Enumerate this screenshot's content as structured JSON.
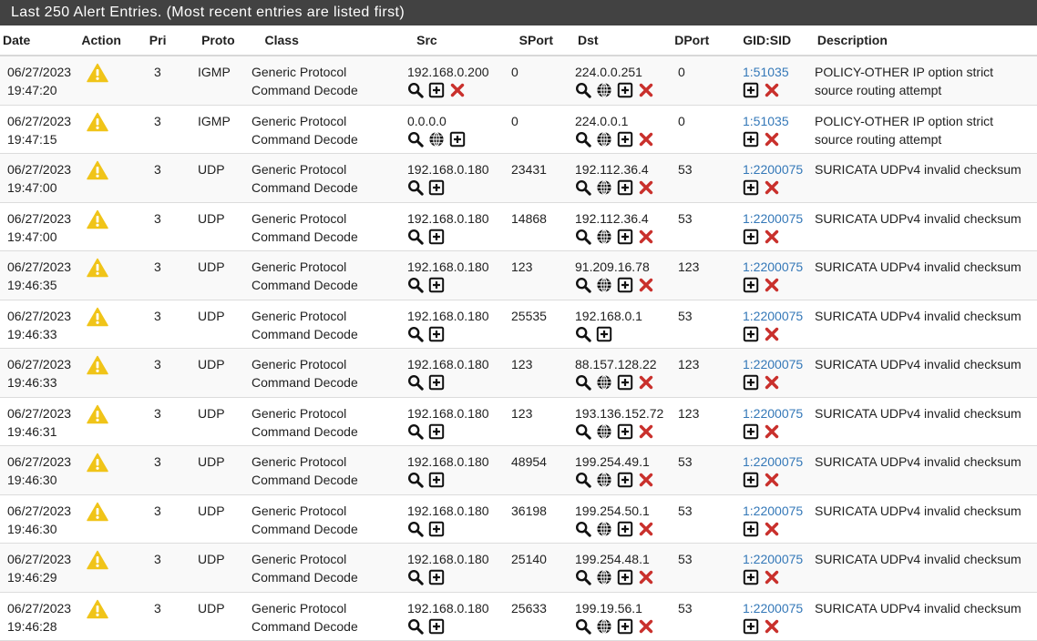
{
  "panel": {
    "title": "Last 250 Alert Entries. (Most recent entries are listed first)"
  },
  "columns": {
    "date": "Date",
    "action": "Action",
    "pri": "Pri",
    "proto": "Proto",
    "class": "Class",
    "src": "Src",
    "sport": "SPort",
    "dst": "Dst",
    "dport": "DPort",
    "gidsid": "GID:SID",
    "description": "Description"
  },
  "icons": {
    "action": "warning-triangle-icon",
    "src_dst": [
      "search-icon",
      "globe-icon",
      "add-icon",
      "remove-icon"
    ],
    "colors": {
      "warning": "#f0c419",
      "remove": "#c9302c",
      "link": "#3478b8",
      "header_bg": "#424242"
    }
  },
  "rows": [
    {
      "date": "06/27/2023",
      "time": "19:47:20",
      "pri": "3",
      "proto": "IGMP",
      "class1": "Generic Protocol",
      "class2": "Command Decode",
      "src": "192.168.0.200",
      "sport": "0",
      "dst": "224.0.0.251",
      "dport": "0",
      "gidsid": "1:51035",
      "desc1": "POLICY-OTHER IP option strict",
      "desc2": "source routing attempt",
      "src_icons": [
        "search",
        "add",
        "remove"
      ],
      "dst_icons": [
        "search",
        "globe",
        "add",
        "remove"
      ]
    },
    {
      "date": "06/27/2023",
      "time": "19:47:15",
      "pri": "3",
      "proto": "IGMP",
      "class1": "Generic Protocol",
      "class2": "Command Decode",
      "src": "0.0.0.0",
      "sport": "0",
      "dst": "224.0.0.1",
      "dport": "0",
      "gidsid": "1:51035",
      "desc1": "POLICY-OTHER IP option strict",
      "desc2": "source routing attempt",
      "src_icons": [
        "search",
        "globe",
        "add"
      ],
      "dst_icons": [
        "search",
        "globe",
        "add",
        "remove"
      ]
    },
    {
      "date": "06/27/2023",
      "time": "19:47:00",
      "pri": "3",
      "proto": "UDP",
      "class1": "Generic Protocol",
      "class2": "Command Decode",
      "src": "192.168.0.180",
      "sport": "23431",
      "dst": "192.112.36.4",
      "dport": "53",
      "gidsid": "1:2200075",
      "desc1": "SURICATA UDPv4 invalid checksum",
      "desc2": "",
      "src_icons": [
        "search",
        "add"
      ],
      "dst_icons": [
        "search",
        "globe",
        "add",
        "remove"
      ]
    },
    {
      "date": "06/27/2023",
      "time": "19:47:00",
      "pri": "3",
      "proto": "UDP",
      "class1": "Generic Protocol",
      "class2": "Command Decode",
      "src": "192.168.0.180",
      "sport": "14868",
      "dst": "192.112.36.4",
      "dport": "53",
      "gidsid": "1:2200075",
      "desc1": "SURICATA UDPv4 invalid checksum",
      "desc2": "",
      "src_icons": [
        "search",
        "add"
      ],
      "dst_icons": [
        "search",
        "globe",
        "add",
        "remove"
      ]
    },
    {
      "date": "06/27/2023",
      "time": "19:46:35",
      "pri": "3",
      "proto": "UDP",
      "class1": "Generic Protocol",
      "class2": "Command Decode",
      "src": "192.168.0.180",
      "sport": "123",
      "dst": "91.209.16.78",
      "dport": "123",
      "gidsid": "1:2200075",
      "desc1": "SURICATA UDPv4 invalid checksum",
      "desc2": "",
      "src_icons": [
        "search",
        "add"
      ],
      "dst_icons": [
        "search",
        "globe",
        "add",
        "remove"
      ]
    },
    {
      "date": "06/27/2023",
      "time": "19:46:33",
      "pri": "3",
      "proto": "UDP",
      "class1": "Generic Protocol",
      "class2": "Command Decode",
      "src": "192.168.0.180",
      "sport": "25535",
      "dst": "192.168.0.1",
      "dport": "53",
      "gidsid": "1:2200075",
      "desc1": "SURICATA UDPv4 invalid checksum",
      "desc2": "",
      "src_icons": [
        "search",
        "add"
      ],
      "dst_icons": [
        "search",
        "add"
      ]
    },
    {
      "date": "06/27/2023",
      "time": "19:46:33",
      "pri": "3",
      "proto": "UDP",
      "class1": "Generic Protocol",
      "class2": "Command Decode",
      "src": "192.168.0.180",
      "sport": "123",
      "dst": "88.157.128.22",
      "dport": "123",
      "gidsid": "1:2200075",
      "desc1": "SURICATA UDPv4 invalid checksum",
      "desc2": "",
      "src_icons": [
        "search",
        "add"
      ],
      "dst_icons": [
        "search",
        "globe",
        "add",
        "remove"
      ]
    },
    {
      "date": "06/27/2023",
      "time": "19:46:31",
      "pri": "3",
      "proto": "UDP",
      "class1": "Generic Protocol",
      "class2": "Command Decode",
      "src": "192.168.0.180",
      "sport": "123",
      "dst": "193.136.152.72",
      "dport": "123",
      "gidsid": "1:2200075",
      "desc1": "SURICATA UDPv4 invalid checksum",
      "desc2": "",
      "src_icons": [
        "search",
        "add"
      ],
      "dst_icons": [
        "search",
        "globe",
        "add",
        "remove"
      ]
    },
    {
      "date": "06/27/2023",
      "time": "19:46:30",
      "pri": "3",
      "proto": "UDP",
      "class1": "Generic Protocol",
      "class2": "Command Decode",
      "src": "192.168.0.180",
      "sport": "48954",
      "dst": "199.254.49.1",
      "dport": "53",
      "gidsid": "1:2200075",
      "desc1": "SURICATA UDPv4 invalid checksum",
      "desc2": "",
      "src_icons": [
        "search",
        "add"
      ],
      "dst_icons": [
        "search",
        "globe",
        "add",
        "remove"
      ]
    },
    {
      "date": "06/27/2023",
      "time": "19:46:30",
      "pri": "3",
      "proto": "UDP",
      "class1": "Generic Protocol",
      "class2": "Command Decode",
      "src": "192.168.0.180",
      "sport": "36198",
      "dst": "199.254.50.1",
      "dport": "53",
      "gidsid": "1:2200075",
      "desc1": "SURICATA UDPv4 invalid checksum",
      "desc2": "",
      "src_icons": [
        "search",
        "add"
      ],
      "dst_icons": [
        "search",
        "globe",
        "add",
        "remove"
      ]
    },
    {
      "date": "06/27/2023",
      "time": "19:46:29",
      "pri": "3",
      "proto": "UDP",
      "class1": "Generic Protocol",
      "class2": "Command Decode",
      "src": "192.168.0.180",
      "sport": "25140",
      "dst": "199.254.48.1",
      "dport": "53",
      "gidsid": "1:2200075",
      "desc1": "SURICATA UDPv4 invalid checksum",
      "desc2": "",
      "src_icons": [
        "search",
        "add"
      ],
      "dst_icons": [
        "search",
        "globe",
        "add",
        "remove"
      ]
    },
    {
      "date": "06/27/2023",
      "time": "19:46:28",
      "pri": "3",
      "proto": "UDP",
      "class1": "Generic Protocol",
      "class2": "Command Decode",
      "src": "192.168.0.180",
      "sport": "25633",
      "dst": "199.19.56.1",
      "dport": "53",
      "gidsid": "1:2200075",
      "desc1": "SURICATA UDPv4 invalid checksum",
      "desc2": "",
      "src_icons": [
        "search",
        "add"
      ],
      "dst_icons": [
        "search",
        "globe",
        "add",
        "remove"
      ]
    }
  ]
}
